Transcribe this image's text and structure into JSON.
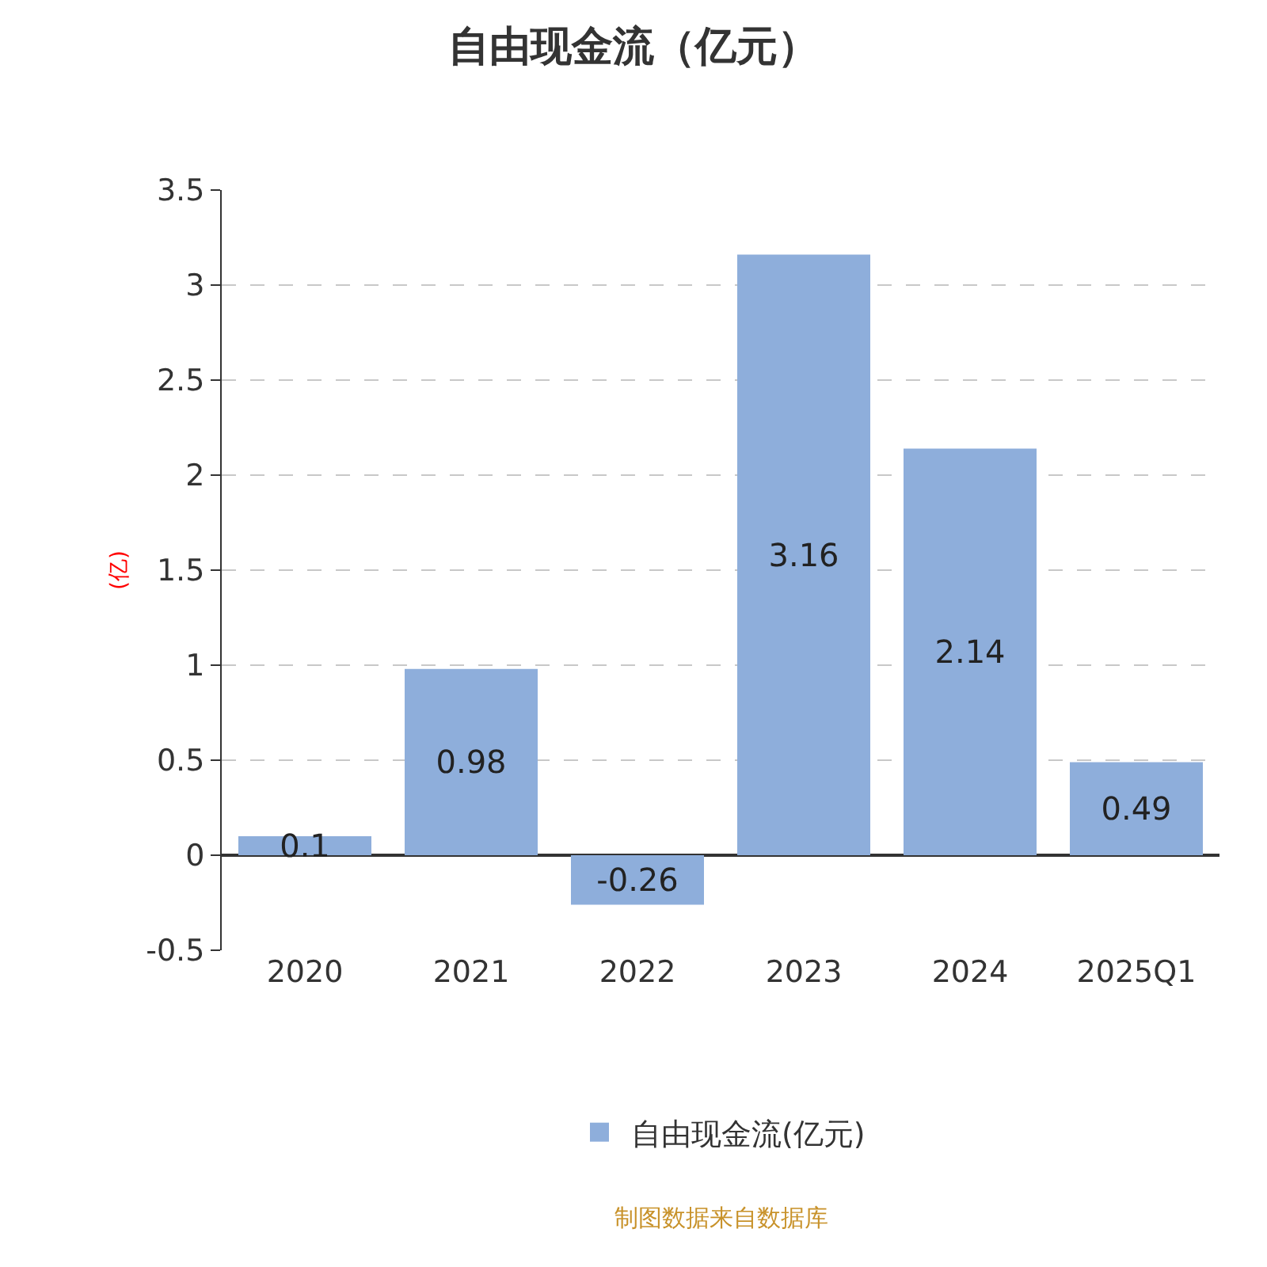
{
  "chart_data": {
    "type": "bar",
    "title": "自由现金流（亿元）",
    "ylabel": "(亿)",
    "categories": [
      "2020",
      "2021",
      "2022",
      "2023",
      "2024",
      "2025Q1"
    ],
    "series": [
      {
        "name": "自由现金流(亿元)",
        "color": "#8eaedb",
        "values": [
          0.1,
          0.98,
          -0.26,
          3.16,
          2.14,
          0.49
        ]
      }
    ],
    "ylim": [
      -0.5,
      3.5
    ],
    "yticks": [
      -0.5,
      0,
      0.5,
      1,
      1.5,
      2,
      2.5,
      3,
      3.5
    ],
    "grid": "y",
    "legend": "bottom",
    "data_labels": true,
    "annotations": [
      "制图数据来自数据库"
    ]
  }
}
